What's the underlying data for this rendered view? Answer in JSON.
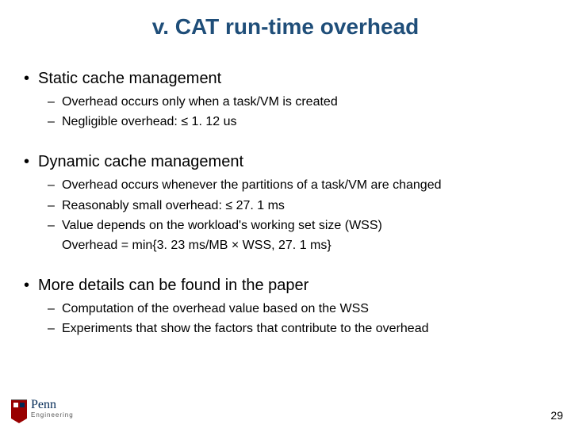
{
  "title": "v. CAT run-time overhead",
  "sections": [
    {
      "heading": "Static cache management",
      "subs": [
        "Overhead occurs only when a task/VM is created",
        "Negligible overhead: ≤ 1. 12 us"
      ]
    },
    {
      "heading": "Dynamic cache management",
      "subs": [
        "Overhead occurs whenever the partitions of a task/VM are changed",
        "Reasonably small overhead: ≤ 27. 1 ms",
        "Value depends on the workload's working set size (WSS)"
      ],
      "cont": "Overhead = min{3. 23 ms/MB × WSS, 27. 1 ms}"
    },
    {
      "heading": "More details can be found in the paper",
      "subs": [
        "Computation of the overhead value based on the WSS",
        "Experiments that show the factors that contribute to the overhead"
      ]
    }
  ],
  "logo": {
    "name": "Penn",
    "sub": "Engineering"
  },
  "page_number": "29",
  "colors": {
    "title": "#1f4e79",
    "text": "#000000",
    "shield": "#990000",
    "penn": "#002855"
  }
}
